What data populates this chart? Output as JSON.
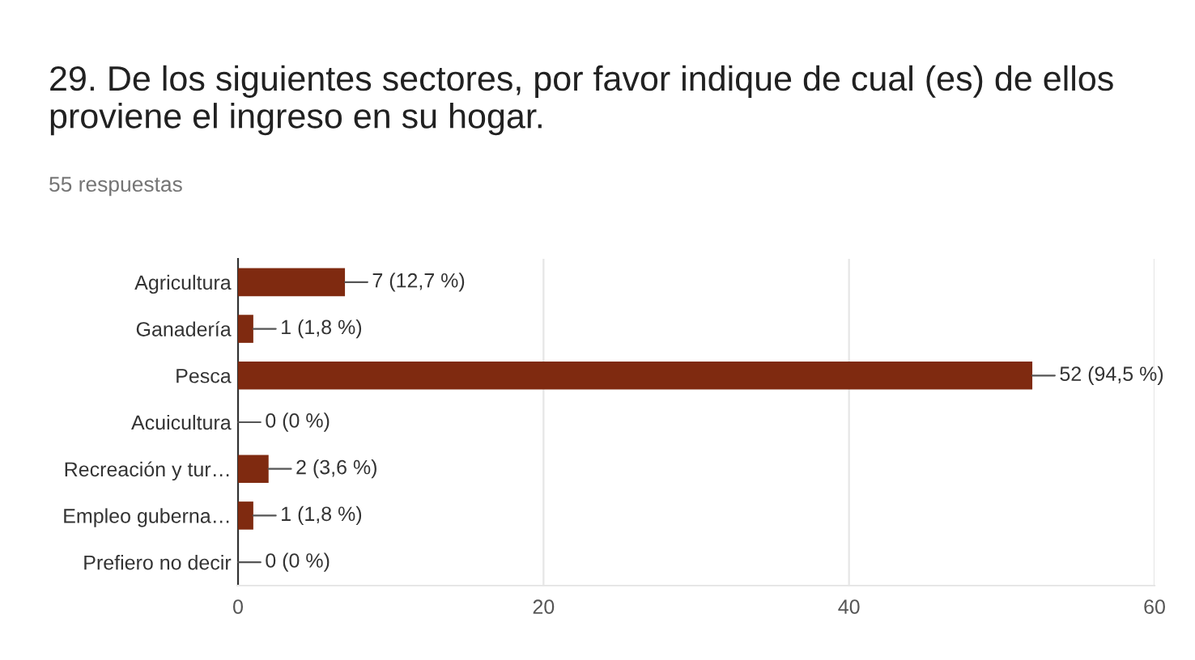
{
  "chart_data": {
    "type": "bar",
    "orientation": "horizontal",
    "title": "29. De los siguientes sectores, por favor indique de cual (es) de ellos proviene el ingreso en su hogar.",
    "subtitle": "55 respuestas",
    "categories": [
      "Agricultura",
      "Ganadería",
      "Pesca",
      "Acuicultura",
      "Recreación y tur…",
      "Empleo guberna…",
      "Prefiero no decir"
    ],
    "values": [
      7,
      1,
      52,
      0,
      2,
      1,
      0
    ],
    "value_labels": [
      "7 (12,7 %)",
      "1 (1,8 %)",
      "52 (94,5 %)",
      "0 (0 %)",
      "2 (3,6 %)",
      "1 (1,8 %)",
      "0 (0 %)"
    ],
    "color": "#7f2a10",
    "xlim": [
      0,
      60
    ],
    "xticks": [
      0,
      20,
      40,
      60
    ],
    "grid": "x"
  }
}
